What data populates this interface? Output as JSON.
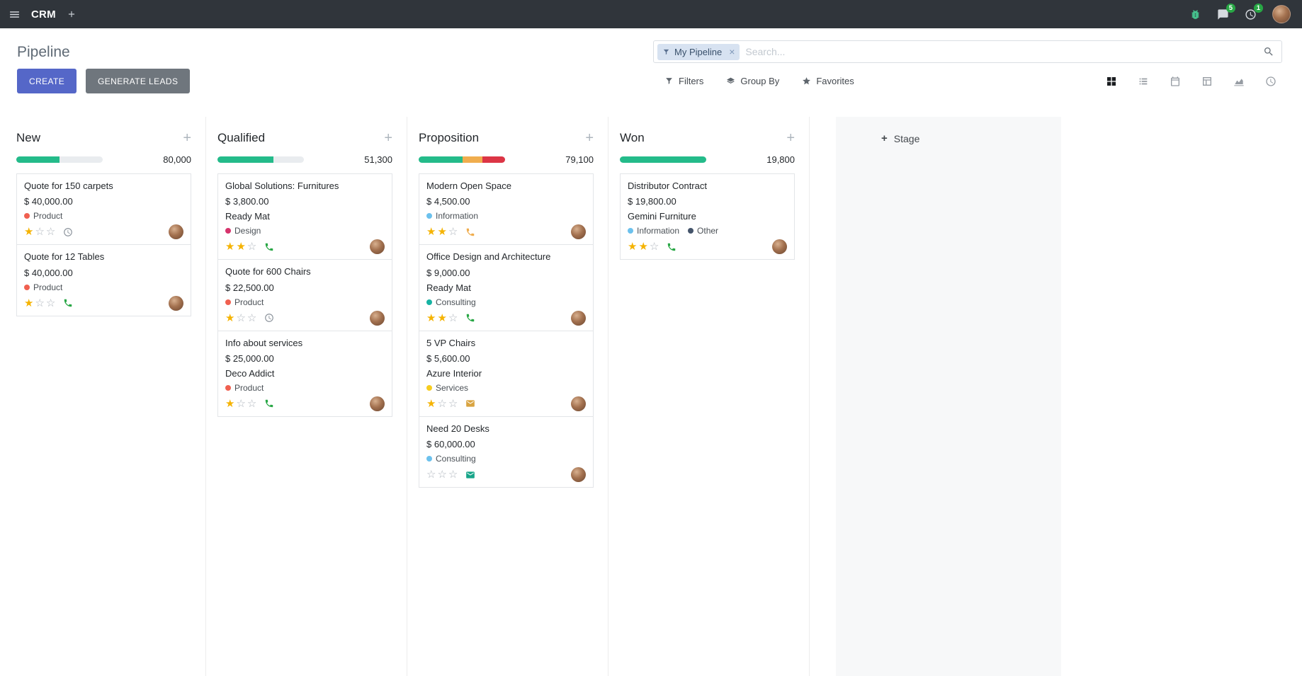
{
  "topbar": {
    "app": "CRM",
    "message_badge": "5",
    "activity_badge": "1",
    "icons": [
      "menu-icon",
      "plus-icon",
      "bug-icon",
      "messages-icon",
      "activity-clock-icon",
      "user-avatar"
    ]
  },
  "control_panel": {
    "title": "Pipeline",
    "create_label": "CREATE",
    "generate_leads_label": "GENERATE LEADS",
    "search_facet": "My Pipeline",
    "search_placeholder": "Search...",
    "filters_label": "Filters",
    "group_by_label": "Group By",
    "favorites_label": "Favorites",
    "accent_color": "#5567C8"
  },
  "view_switcher": [
    {
      "name": "kanban",
      "active": true
    },
    {
      "name": "list",
      "active": false
    },
    {
      "name": "calendar",
      "active": false
    },
    {
      "name": "pivot",
      "active": false
    },
    {
      "name": "graph",
      "active": false
    },
    {
      "name": "activity",
      "active": false
    }
  ],
  "board": {
    "add_stage_label": "Stage",
    "progress_colors": {
      "success": "#24BB8A",
      "warning": "#F0AD4E",
      "danger": "#DC3545",
      "muted": "#E9ECEF"
    },
    "columns": [
      {
        "name": "New",
        "counter": "80,000",
        "progress": [
          {
            "color": "#24BB8A",
            "pct": 50
          }
        ],
        "cards": [
          {
            "title": "Quote for 150 carpets",
            "amount": "$ 40,000.00",
            "partner": null,
            "tags": [
              {
                "label": "Product",
                "color": "#F06050"
              }
            ],
            "stars": 1,
            "activity": {
              "type": "clock",
              "color": "#878F98"
            }
          },
          {
            "title": "Quote for 12 Tables",
            "amount": "$ 40,000.00",
            "partner": null,
            "tags": [
              {
                "label": "Product",
                "color": "#F06050"
              }
            ],
            "stars": 1,
            "activity": {
              "type": "phone",
              "color": "#28A745"
            }
          }
        ]
      },
      {
        "name": "Qualified",
        "counter": "51,300",
        "progress": [
          {
            "color": "#24BB8A",
            "pct": 65
          }
        ],
        "cards": [
          {
            "title": "Global Solutions: Furnitures",
            "amount": "$ 3,800.00",
            "partner": "Ready Mat",
            "tags": [
              {
                "label": "Design",
                "color": "#D6336C"
              }
            ],
            "stars": 2,
            "activity": {
              "type": "phone",
              "color": "#28A745"
            }
          },
          {
            "title": "Quote for 600 Chairs",
            "amount": "$ 22,500.00",
            "partner": null,
            "tags": [
              {
                "label": "Product",
                "color": "#F06050"
              }
            ],
            "stars": 1,
            "activity": {
              "type": "clock",
              "color": "#878F98"
            }
          },
          {
            "title": "Info about services",
            "amount": "$ 25,000.00",
            "partner": "Deco Addict",
            "tags": [
              {
                "label": "Product",
                "color": "#F06050"
              }
            ],
            "stars": 1,
            "activity": {
              "type": "phone",
              "color": "#28A745"
            }
          }
        ]
      },
      {
        "name": "Proposition",
        "counter": "79,100",
        "progress": [
          {
            "color": "#24BB8A",
            "pct": 51
          },
          {
            "color": "#F0AD4E",
            "pct": 23
          },
          {
            "color": "#DC3545",
            "pct": 26
          }
        ],
        "cards": [
          {
            "title": "Modern Open Space",
            "amount": "$ 4,500.00",
            "partner": null,
            "tags": [
              {
                "label": "Information",
                "color": "#6CC1ED"
              }
            ],
            "stars": 2,
            "activity": {
              "type": "phone",
              "color": "#F0AD4E"
            }
          },
          {
            "title": "Office Design and Architecture",
            "amount": "$ 9,000.00",
            "partner": "Ready Mat",
            "tags": [
              {
                "label": "Consulting",
                "color": "#17B3A3"
              }
            ],
            "stars": 2,
            "activity": {
              "type": "phone",
              "color": "#28A745"
            }
          },
          {
            "title": "5 VP Chairs",
            "amount": "$ 5,600.00",
            "partner": "Azure Interior",
            "tags": [
              {
                "label": "Services",
                "color": "#F7CD1F"
              }
            ],
            "stars": 1,
            "activity": {
              "type": "envelope",
              "color": "#D9A441"
            }
          },
          {
            "title": "Need 20 Desks",
            "amount": "$ 60,000.00",
            "partner": null,
            "tags": [
              {
                "label": "Consulting",
                "color": "#6CC1ED"
              }
            ],
            "stars": 0,
            "activity": {
              "type": "envelope",
              "color": "#17A589"
            }
          }
        ]
      },
      {
        "name": "Won",
        "counter": "19,800",
        "progress": [
          {
            "color": "#24BB8A",
            "pct": 100
          }
        ],
        "cards": [
          {
            "title": "Distributor Contract",
            "amount": "$ 19,800.00",
            "partner": "Gemini Furniture",
            "tags": [
              {
                "label": "Information",
                "color": "#6CC1ED"
              },
              {
                "label": "Other",
                "color": "#44546A"
              }
            ],
            "stars": 2,
            "activity": {
              "type": "phone",
              "color": "#28A745"
            }
          }
        ]
      }
    ]
  }
}
